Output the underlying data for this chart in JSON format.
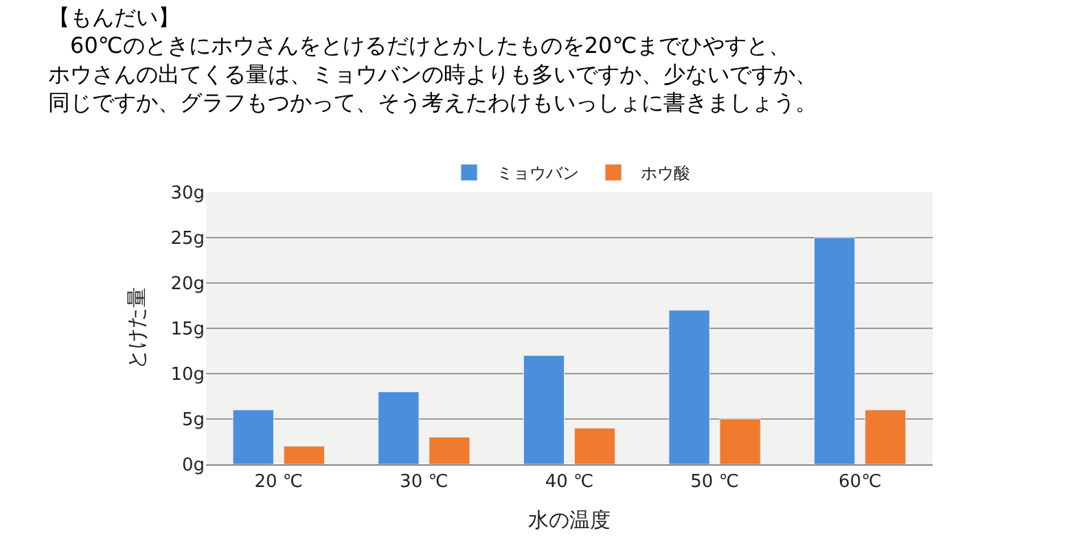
{
  "chart_data": {
    "type": "bar",
    "title": "【もんだい】",
    "subtitle": "　60℃のときにホウさんをとけるだけとかしたものを20℃までひやすと、ホウさんの出てくる量は、ミョウバンの時よりも多いですか、少ないですか、同じですか、グラフもつかって、そう考えたわけもいっしょに書きましょう。",
    "xlabel": "水の温度",
    "ylabel": "とけた量",
    "categories": [
      "20 ℃",
      "30 ℃",
      "40 ℃",
      "50 ℃",
      "60℃"
    ],
    "series": [
      {
        "name": "ミョウバン",
        "color": "#4a8fdb",
        "values": [
          6,
          8,
          12,
          17,
          25
        ]
      },
      {
        "name": "ホウ酸",
        "color": "#f07a2e",
        "values": [
          2,
          3,
          4,
          5,
          6
        ]
      }
    ],
    "ylim": [
      0,
      30
    ],
    "yticks": [
      {
        "value": 0,
        "label": "0g"
      },
      {
        "value": 5,
        "label": "5g"
      },
      {
        "value": 10,
        "label": "10g"
      },
      {
        "value": 15,
        "label": "15g"
      },
      {
        "value": 20,
        "label": "20g"
      },
      {
        "value": 25,
        "label": "25g"
      },
      {
        "value": 30,
        "label": "30g"
      }
    ],
    "grid": "y",
    "legend": "top"
  }
}
